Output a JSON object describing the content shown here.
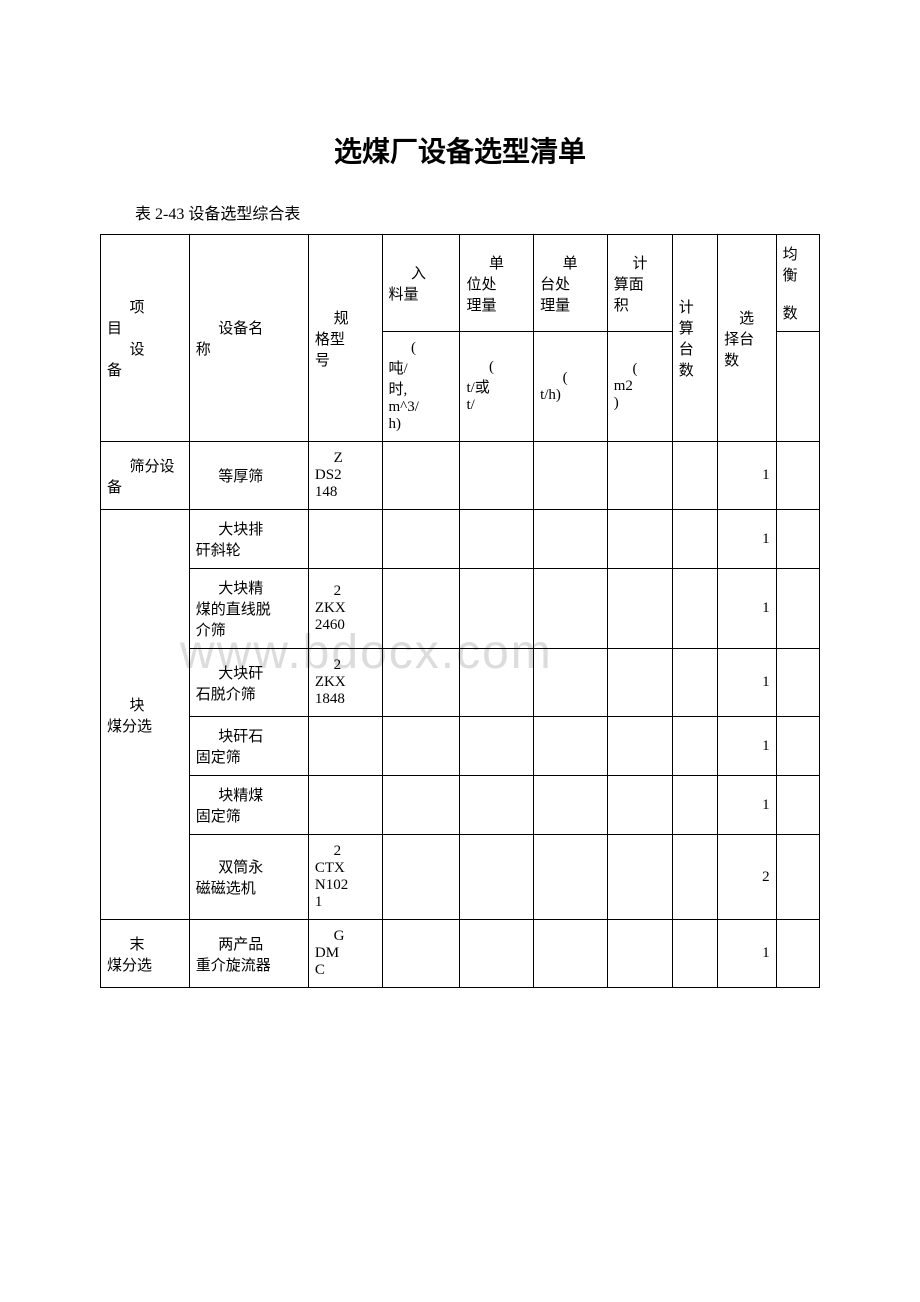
{
  "title": "选煤厂设备选型清单",
  "subtitle": "表 2-43 设备选型综合表",
  "watermark": "www.bdocx.com",
  "headers": {
    "row1": {
      "col1": "项目\n设备",
      "col2": "设备名称",
      "col3": "规格型号",
      "col4": "入料量",
      "col5": "单位处理量",
      "col6": "单台处理量",
      "col7": "计算面积",
      "col8": "计算台数",
      "col9": "选择台数",
      "col10": "均衡\n数"
    },
    "row2": {
      "col4": "(吨/时, m^3/h)",
      "col5": "(t/或t/",
      "col6": "(t/h)",
      "col7": "(m2)"
    }
  },
  "rows": [
    {
      "category": "筛分设备",
      "category_rowspan": 1,
      "name": "等厚筛",
      "model": "ZDS2148",
      "c4": "",
      "c5": "",
      "c6": "",
      "c7": "",
      "c8": "",
      "count": "1",
      "c10": ""
    },
    {
      "category": "块煤分选",
      "category_rowspan": 6,
      "name": "大块排矸斜轮",
      "model": "",
      "c4": "",
      "c5": "",
      "c6": "",
      "c7": "",
      "c8": "",
      "count": "1",
      "c10": ""
    },
    {
      "name": "大块精煤的直线脱介筛",
      "model": "2ZKX2460",
      "c4": "",
      "c5": "",
      "c6": "",
      "c7": "",
      "c8": "",
      "count": "1",
      "c10": ""
    },
    {
      "name": "大块矸石脱介筛",
      "model": "2ZKX1848",
      "c4": "",
      "c5": "",
      "c6": "",
      "c7": "",
      "c8": "",
      "count": "1",
      "c10": ""
    },
    {
      "name": "块矸石固定筛",
      "model": "",
      "c4": "",
      "c5": "",
      "c6": "",
      "c7": "",
      "c8": "",
      "count": "1",
      "c10": ""
    },
    {
      "name": "块精煤固定筛",
      "model": "",
      "c4": "",
      "c5": "",
      "c6": "",
      "c7": "",
      "c8": "",
      "count": "1",
      "c10": ""
    },
    {
      "name": "双筒永磁磁选机",
      "model": "2CTXN1021",
      "c4": "",
      "c5": "",
      "c6": "",
      "c7": "",
      "c8": "",
      "count": "2",
      "c10": ""
    },
    {
      "category": "末煤分选",
      "category_rowspan": 1,
      "name": "两产品重介旋流器",
      "model": "GDMC",
      "c4": "",
      "c5": "",
      "c6": "",
      "c7": "",
      "c8": "",
      "count": "1",
      "c10": ""
    }
  ]
}
